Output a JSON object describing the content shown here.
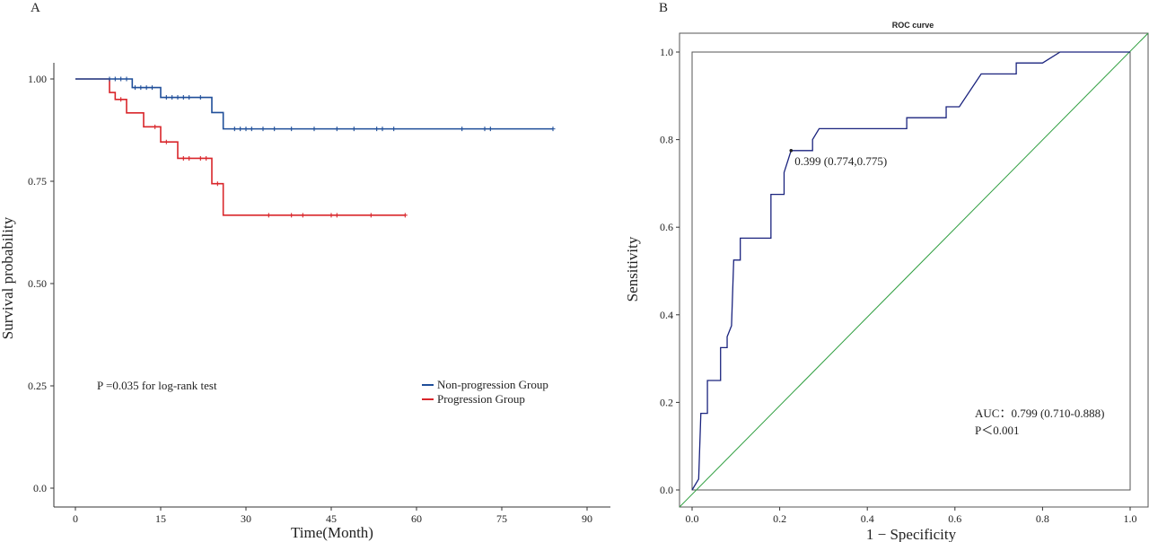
{
  "panels": {
    "a": "A",
    "b": "B"
  },
  "chart_data": [
    {
      "type": "line",
      "subtype": "kaplan-meier",
      "xlabel": "Time(Month)",
      "ylabel": "Survival probability",
      "xlim": [
        0,
        90
      ],
      "ylim": [
        0,
        1
      ],
      "x_ticks": [
        "0",
        "15",
        "30",
        "45",
        "60",
        "75",
        "90"
      ],
      "y_ticks": [
        "0.0",
        "0.25",
        "0.50",
        "0.75",
        "1.00"
      ],
      "annotation": "P =0.035 for log-rank test",
      "legend": {
        "placement": "bottom-right",
        "entries": [
          "Non-progression Group",
          "Progression Group"
        ]
      },
      "series": [
        {
          "name": "Non-progression Group",
          "color": "#1f4e99",
          "steps": [
            [
              0,
              1.0
            ],
            [
              10,
              0.979
            ],
            [
              15,
              0.955
            ],
            [
              24,
              0.918
            ],
            [
              26,
              0.878
            ],
            [
              84,
              0.878
            ]
          ],
          "censored": [
            [
              6,
              1.0
            ],
            [
              7,
              1.0
            ],
            [
              8,
              1.0
            ],
            [
              9,
              1.0
            ],
            [
              10.5,
              0.979
            ],
            [
              11.5,
              0.979
            ],
            [
              12.5,
              0.979
            ],
            [
              13.5,
              0.979
            ],
            [
              16,
              0.955
            ],
            [
              17,
              0.955
            ],
            [
              18,
              0.955
            ],
            [
              19,
              0.955
            ],
            [
              20,
              0.955
            ],
            [
              22,
              0.955
            ],
            [
              28,
              0.878
            ],
            [
              29,
              0.878
            ],
            [
              30,
              0.878
            ],
            [
              31,
              0.878
            ],
            [
              33,
              0.878
            ],
            [
              35,
              0.878
            ],
            [
              38,
              0.878
            ],
            [
              42,
              0.878
            ],
            [
              46,
              0.878
            ],
            [
              49,
              0.878
            ],
            [
              53,
              0.878
            ],
            [
              54,
              0.878
            ],
            [
              56,
              0.878
            ],
            [
              68,
              0.878
            ],
            [
              72,
              0.878
            ],
            [
              73,
              0.878
            ],
            [
              84,
              0.878
            ]
          ]
        },
        {
          "name": "Progression Group",
          "color": "#d9262b",
          "steps": [
            [
              0,
              1.0
            ],
            [
              6,
              0.967
            ],
            [
              7,
              0.95
            ],
            [
              9,
              0.917
            ],
            [
              12,
              0.883
            ],
            [
              15,
              0.846
            ],
            [
              18,
              0.806
            ],
            [
              24,
              0.744
            ],
            [
              26,
              0.667
            ],
            [
              58,
              0.667
            ]
          ],
          "censored": [
            [
              8,
              0.95
            ],
            [
              14,
              0.883
            ],
            [
              16,
              0.846
            ],
            [
              19,
              0.806
            ],
            [
              20,
              0.806
            ],
            [
              22,
              0.806
            ],
            [
              23,
              0.806
            ],
            [
              25,
              0.744
            ],
            [
              34,
              0.667
            ],
            [
              38,
              0.667
            ],
            [
              40,
              0.667
            ],
            [
              45,
              0.667
            ],
            [
              46,
              0.667
            ],
            [
              52,
              0.667
            ],
            [
              58,
              0.667
            ]
          ]
        }
      ]
    },
    {
      "type": "line",
      "subtype": "roc",
      "title": "ROC curve",
      "xlabel": "1 − Specificity",
      "ylabel": "Sensitivity",
      "xlim": [
        0,
        1
      ],
      "ylim": [
        0,
        1
      ],
      "x_ticks": [
        "0.0",
        "0.2",
        "0.4",
        "0.6",
        "0.8",
        "1.0"
      ],
      "y_ticks": [
        "0.0",
        "0.2",
        "0.4",
        "0.6",
        "0.8",
        "1.0"
      ],
      "curve_color": "#1a237e",
      "reference_color": "#2e9e3f",
      "curve": [
        [
          0,
          0
        ],
        [
          0.015,
          0.025
        ],
        [
          0.02,
          0.175
        ],
        [
          0.035,
          0.175
        ],
        [
          0.035,
          0.25
        ],
        [
          0.065,
          0.25
        ],
        [
          0.065,
          0.325
        ],
        [
          0.08,
          0.325
        ],
        [
          0.08,
          0.35
        ],
        [
          0.09,
          0.375
        ],
        [
          0.095,
          0.525
        ],
        [
          0.11,
          0.525
        ],
        [
          0.11,
          0.575
        ],
        [
          0.18,
          0.575
        ],
        [
          0.18,
          0.675
        ],
        [
          0.21,
          0.675
        ],
        [
          0.21,
          0.725
        ],
        [
          0.226,
          0.775
        ],
        [
          0.275,
          0.775
        ],
        [
          0.275,
          0.8
        ],
        [
          0.29,
          0.825
        ],
        [
          0.49,
          0.825
        ],
        [
          0.49,
          0.85
        ],
        [
          0.58,
          0.85
        ],
        [
          0.58,
          0.875
        ],
        [
          0.61,
          0.875
        ],
        [
          0.66,
          0.95
        ],
        [
          0.74,
          0.95
        ],
        [
          0.74,
          0.975
        ],
        [
          0.8,
          0.975
        ],
        [
          0.84,
          1.0
        ],
        [
          1.0,
          1.0
        ]
      ],
      "cutoff_point": {
        "x": 0.226,
        "y": 0.775,
        "label": "0.399 (0.774,0.775)"
      },
      "auc_text": "AUC：0.799 (0.710-0.888)",
      "p_text": "P＜0.001"
    }
  ]
}
